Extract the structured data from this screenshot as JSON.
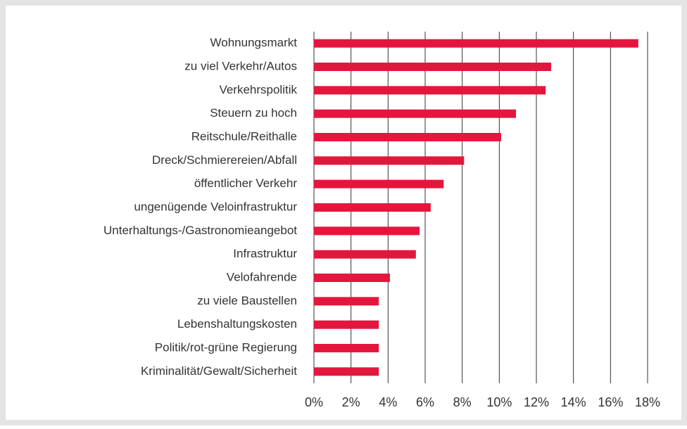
{
  "chart_data": {
    "type": "bar",
    "orientation": "horizontal",
    "categories": [
      "Wohnungsmarkt",
      "zu viel Verkehr/Autos",
      "Verkehrspolitik",
      "Steuern zu hoch",
      "Reitschule/Reithalle",
      "Dreck/Schmierereien/Abfall",
      "öffentlicher Verkehr",
      "ungenügende Veloinfrastruktur",
      "Unterhaltungs-/Gastronomieangebot",
      "Infrastruktur",
      "Velofahrende",
      "zu viele Baustellen",
      "Lebenshaltungskosten",
      "Politik/rot-grüne Regierung",
      "Kriminalität/Gewalt/Sicherheit"
    ],
    "values": [
      17.5,
      12.8,
      12.5,
      10.9,
      10.1,
      8.1,
      7.0,
      6.3,
      5.7,
      5.5,
      4.1,
      3.5,
      3.5,
      3.5,
      3.5
    ],
    "color": "#e3173e",
    "xlim": [
      0,
      18
    ],
    "xticks": [
      {
        "value": 0,
        "label": "0%"
      },
      {
        "value": 2,
        "label": "2%"
      },
      {
        "value": 4,
        "label": "4%"
      },
      {
        "value": 6,
        "label": "6%"
      },
      {
        "value": 8,
        "label": "8%"
      },
      {
        "value": 10,
        "label": "10%"
      },
      {
        "value": 12,
        "label": "12%"
      },
      {
        "value": 14,
        "label": "14%"
      },
      {
        "value": 16,
        "label": "16%"
      },
      {
        "value": 18,
        "label": "18%"
      }
    ],
    "grid": true
  }
}
